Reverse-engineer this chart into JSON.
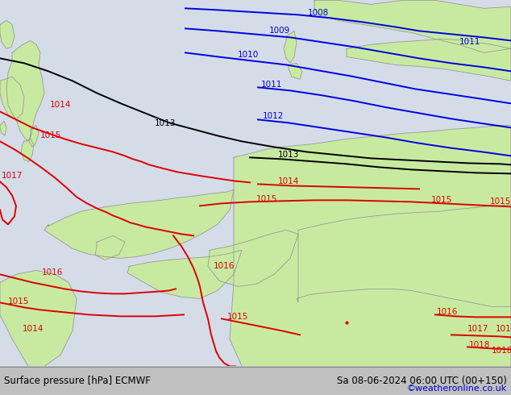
{
  "title_left": "Surface pressure [hPa] ECMWF",
  "title_right": "Sa 08-06-2024 06:00 UTC (00+150)",
  "credit": "©weatheronline.co.uk",
  "bg_color": "#d4dce8",
  "land_color": "#c8eaa0",
  "border_color": "#999999",
  "blue_color": "#0000dd",
  "black_color": "#000000",
  "red_color": "#dd0000",
  "bottom_bar_color": "#c0c0c0",
  "bottom_text_color": "#000000",
  "credit_color": "#0000cc",
  "figsize": [
    6.34,
    4.9
  ],
  "dpi": 100
}
